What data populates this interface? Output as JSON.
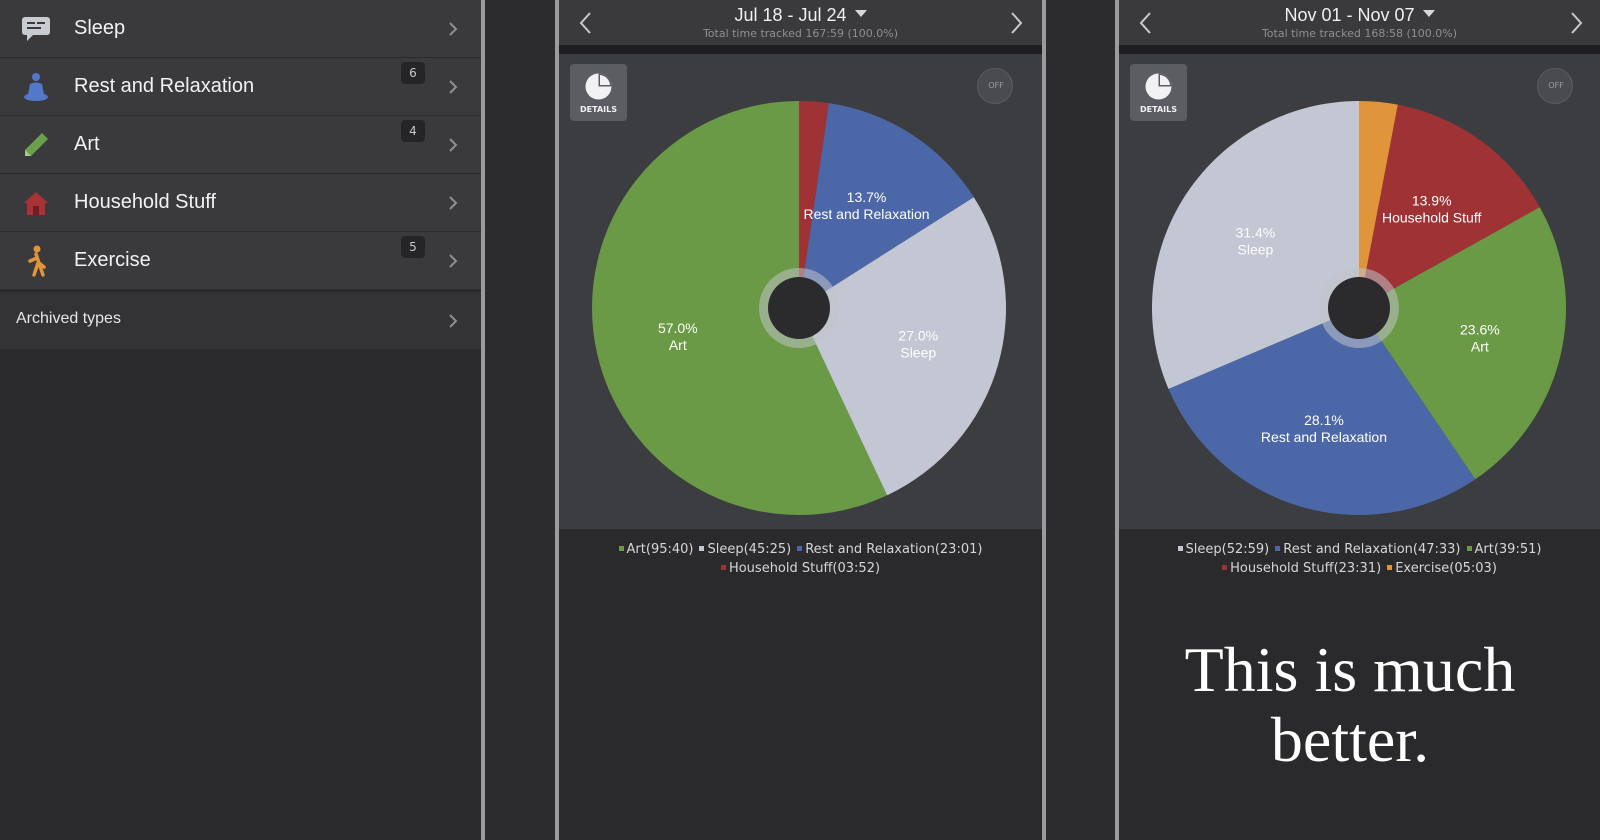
{
  "sidebar": {
    "items": [
      {
        "label": "Sleep",
        "icon": "speech-bubble-icon",
        "badge": ""
      },
      {
        "label": "Rest and Relaxation",
        "icon": "meditation-icon",
        "badge": "6"
      },
      {
        "label": "Art",
        "icon": "pencil-icon",
        "badge": "4"
      },
      {
        "label": "Household Stuff",
        "icon": "house-icon",
        "badge": ""
      },
      {
        "label": "Exercise",
        "icon": "running-person-icon",
        "badge": "5"
      }
    ],
    "archived_label": "Archived types"
  },
  "colors": {
    "art": "#6a9a45",
    "sleep": "#c3c7d3",
    "rest": "#4c67a8",
    "household": "#9e3235",
    "exercise": "#e1953a"
  },
  "week1": {
    "title": "Jul 18 - Jul 24",
    "subtitle": "Total time tracked 167:59 (100.0%)",
    "details_label": "DETAILS",
    "off_label": "OFF",
    "legend_items": [
      "Art(95:40)",
      "Sleep(45:25)",
      "Rest and Relaxation(23:01)",
      "Household Stuff(03:52)"
    ]
  },
  "week2": {
    "title": "Nov 01 - Nov 07",
    "subtitle": "Total time tracked 168:58 (100.0%)",
    "details_label": "DETAILS",
    "off_label": "OFF",
    "legend_items": [
      "Sleep(52:59)",
      "Rest and Relaxation(47:33)",
      "Art(39:51)",
      "Household Stuff(23:31)",
      "Exercise(05:03)"
    ]
  },
  "chart_data": [
    {
      "type": "pie",
      "title": "Jul 18 - Jul 24",
      "slices": [
        {
          "name": "Art",
          "value": 57.0,
          "label_pct": "57.0%",
          "color": "#6a9a45"
        },
        {
          "name": "Sleep",
          "value": 27.0,
          "label_pct": "27.0%",
          "color": "#c3c7d3"
        },
        {
          "name": "Rest and Relaxation",
          "value": 13.7,
          "label_pct": "13.7%",
          "color": "#4c67a8"
        },
        {
          "name": "Household Stuff",
          "value": 2.3,
          "label_pct": "",
          "color": "#9e3235"
        }
      ]
    },
    {
      "type": "pie",
      "title": "Nov 01 - Nov 07",
      "slices": [
        {
          "name": "Sleep",
          "value": 31.4,
          "label_pct": "31.4%",
          "color": "#c3c7d3"
        },
        {
          "name": "Rest and Relaxation",
          "value": 28.1,
          "label_pct": "28.1%",
          "color": "#4c67a8"
        },
        {
          "name": "Art",
          "value": 23.6,
          "label_pct": "23.6%",
          "color": "#6a9a45"
        },
        {
          "name": "Household Stuff",
          "value": 13.9,
          "label_pct": "13.9%",
          "color": "#9e3235"
        },
        {
          "name": "Exercise",
          "value": 3.0,
          "label_pct": "",
          "color": "#e1953a"
        }
      ]
    }
  ],
  "caption": {
    "line1": "This is much",
    "line2": "better."
  }
}
